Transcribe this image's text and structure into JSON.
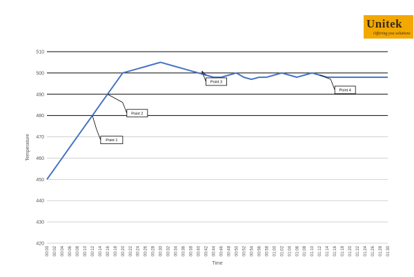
{
  "logo": {
    "brand": "Unitek",
    "tagline": "Offering you solutions",
    "colors": {
      "background": "#f3a800",
      "text": "#3a2a1a"
    }
  },
  "chart_data": {
    "type": "line",
    "title": "",
    "xlabel": "Time",
    "ylabel": "Temperature",
    "ylim": [
      420,
      510
    ],
    "yticks": [
      420,
      430,
      440,
      450,
      460,
      470,
      480,
      490,
      500,
      510
    ],
    "grid": "horizontal",
    "x": [
      "00:00",
      "00:02",
      "00:04",
      "00:06",
      "00:08",
      "00:10",
      "00:12",
      "00:14",
      "00:16",
      "00:18",
      "00:20",
      "00:22",
      "00:24",
      "00:26",
      "00:28",
      "00:30",
      "00:32",
      "00:34",
      "00:36",
      "00:38",
      "00:40",
      "00:42",
      "00:44",
      "00:46",
      "00:48",
      "00:50",
      "00:52",
      "00:54",
      "00:56",
      "00:58",
      "01:00",
      "01:02",
      "01:04",
      "01:06",
      "01:08",
      "01:10",
      "01:12",
      "01:14",
      "01:16",
      "01:18",
      "01:20",
      "01:22",
      "01:24",
      "01:26",
      "01:28",
      "01:30"
    ],
    "series": [
      {
        "color": "#4472c4",
        "values": [
          450,
          455,
          460,
          465,
          470,
          475,
          480,
          485,
          490,
          495,
          500,
          501,
          502,
          503,
          504,
          505,
          504,
          503,
          502,
          501,
          500,
          499,
          498,
          498,
          499,
          500,
          498,
          497,
          498,
          498,
          499,
          500,
          499,
          498,
          499,
          500,
          499,
          498,
          498,
          498,
          498,
          498,
          498,
          498,
          498,
          498
        ]
      }
    ],
    "annotations": [
      {
        "label": "Point 1",
        "x": "00:12",
        "y": 480
      },
      {
        "label": "Point 2",
        "x": "00:16",
        "y": 490
      },
      {
        "label": "Point 3",
        "x": "00:42",
        "y": 499
      },
      {
        "label": "Point 4",
        "x": "01:12",
        "y": 499
      }
    ]
  }
}
